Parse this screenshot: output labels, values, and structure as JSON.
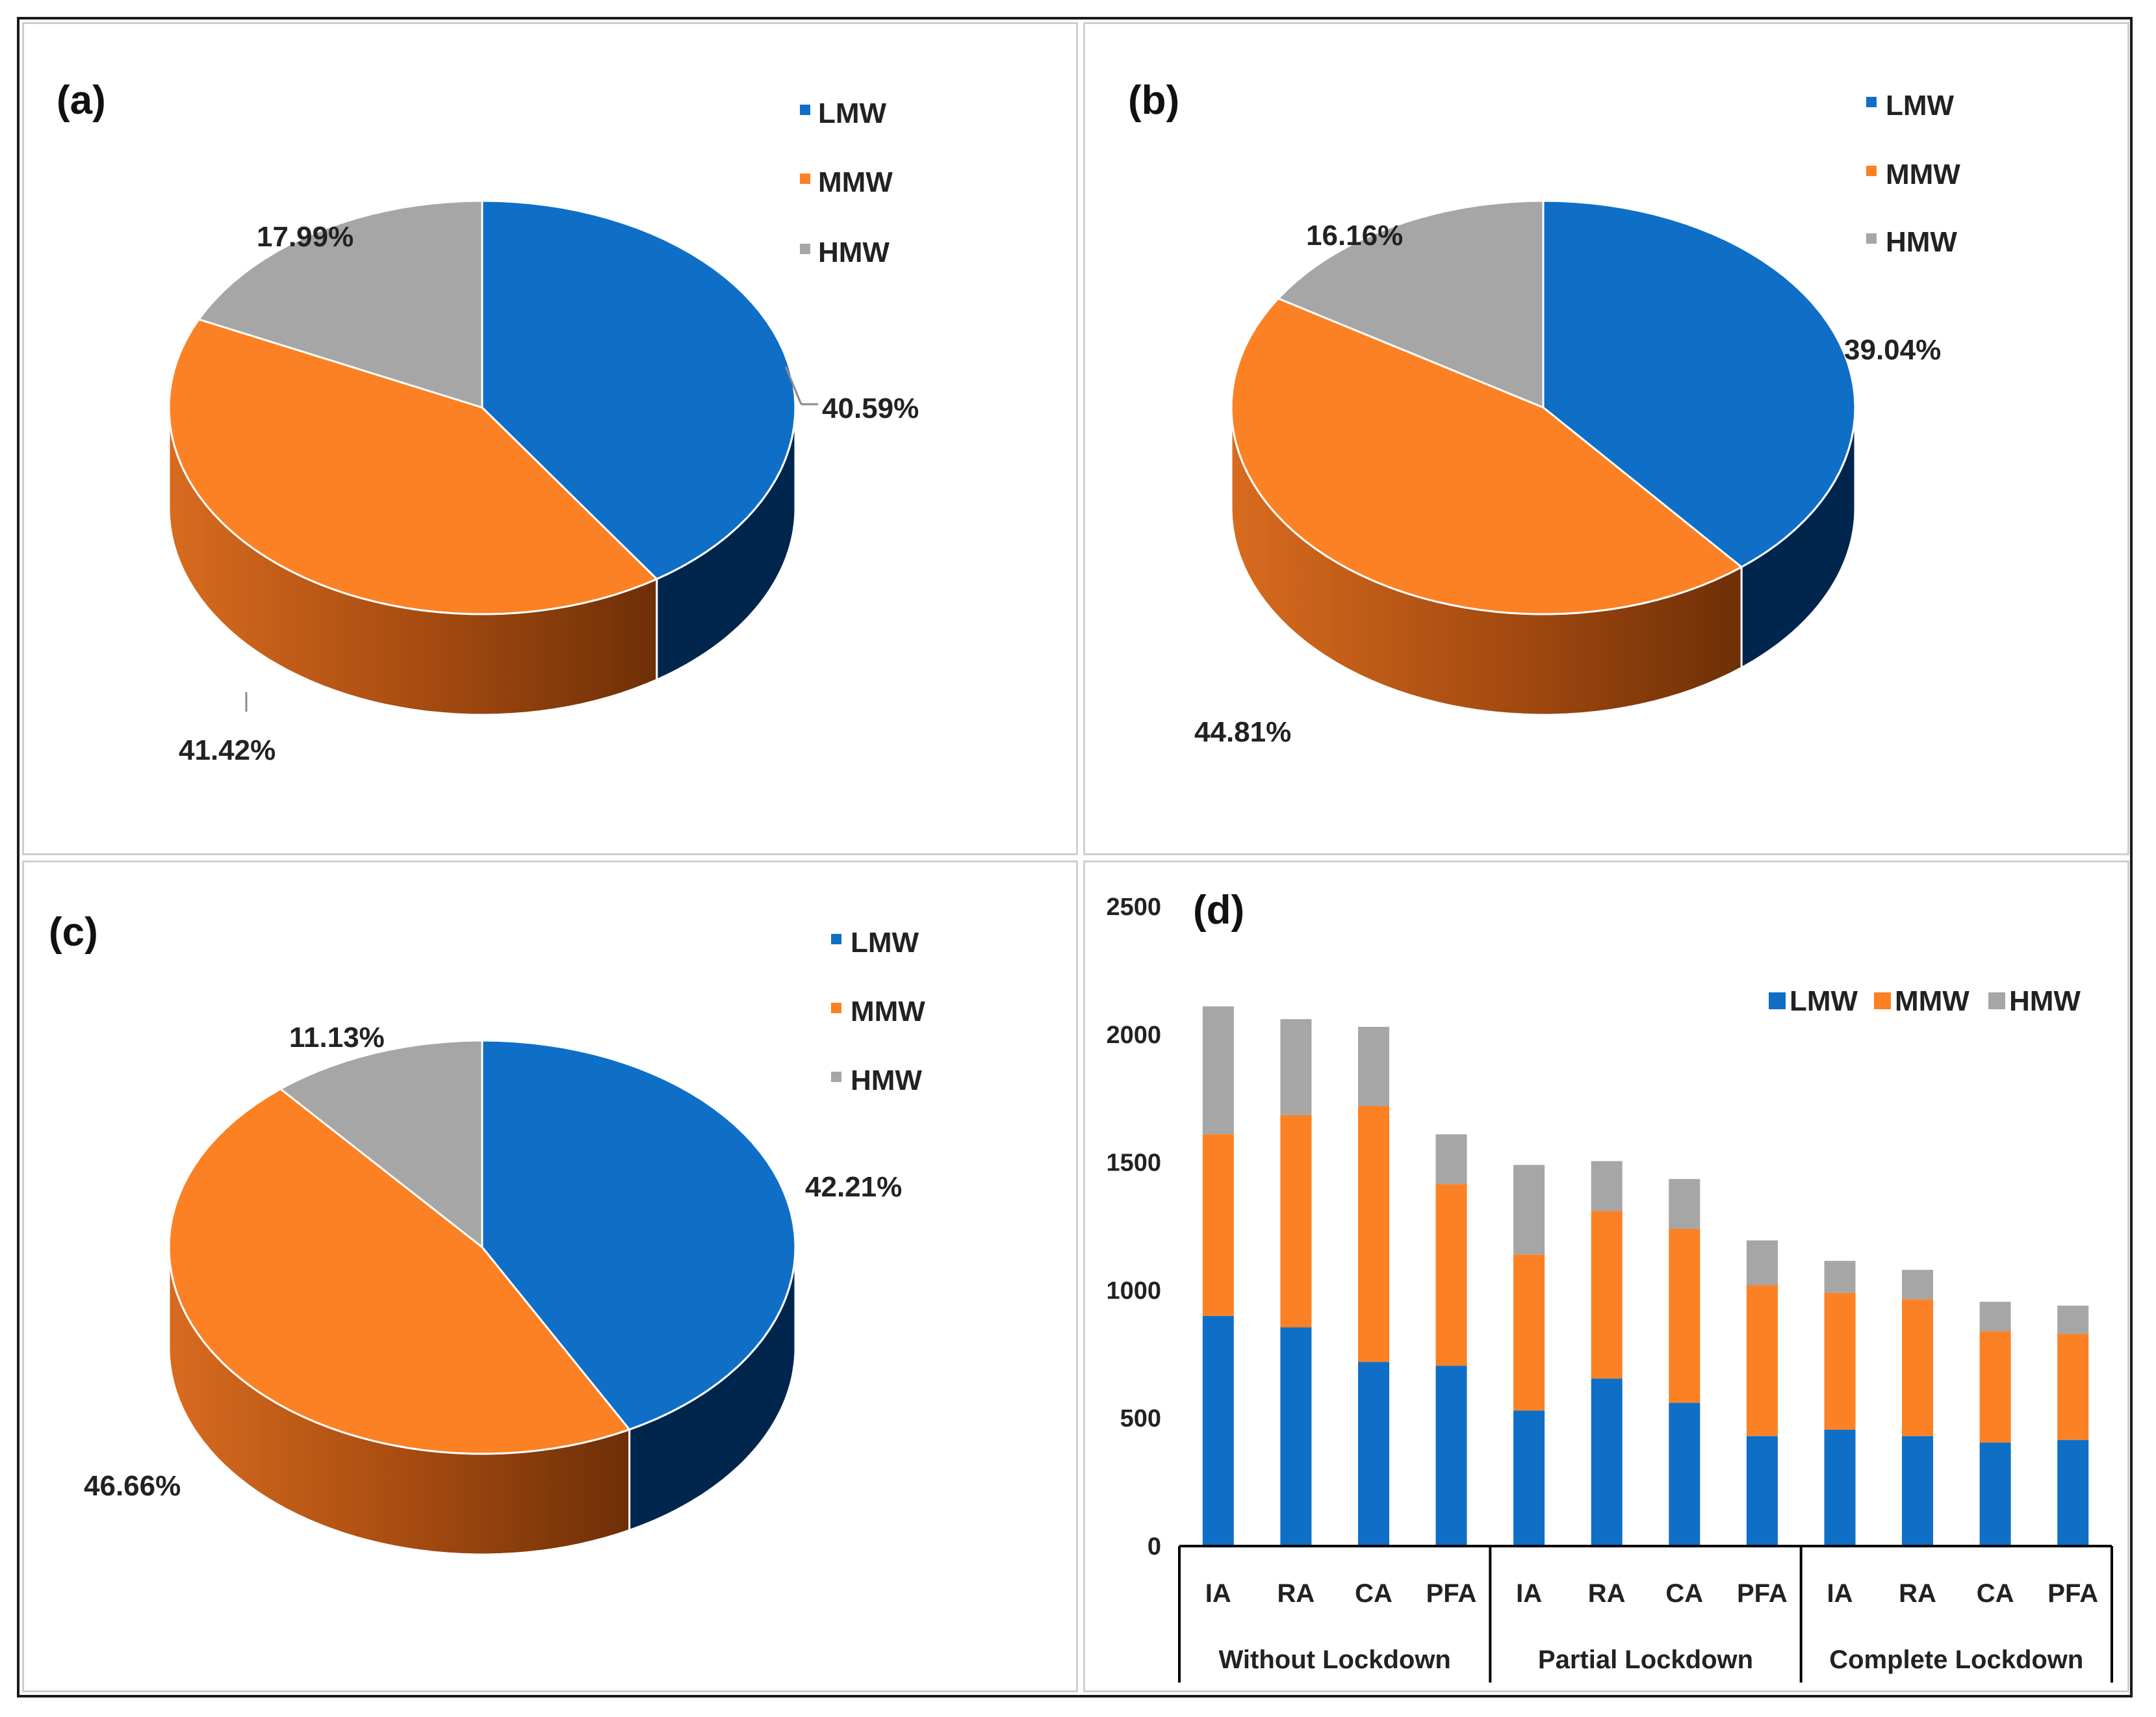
{
  "colors": {
    "LMW": "#0f6fc6",
    "MMW": "#fb8124",
    "HMW": "#a6a6a6",
    "LMW_side": "#00264d",
    "MMW_side_light": "#d86b1f",
    "MMW_side_dark": "#6e2f07",
    "HMW_side": "#7a7a7a",
    "axis": "#000000"
  },
  "chart_data": [
    {
      "type": "pie",
      "panel_label": "(a)",
      "legend": [
        "LMW",
        "MMW",
        "HMW"
      ],
      "slices": [
        {
          "name": "LMW",
          "value": 40.59,
          "label": "40.59%"
        },
        {
          "name": "MMW",
          "value": 41.42,
          "label": "41.42%"
        },
        {
          "name": "HMW",
          "value": 17.99,
          "label": "17.99%"
        }
      ]
    },
    {
      "type": "pie",
      "panel_label": "(b)",
      "legend": [
        "LMW",
        "MMW",
        "HMW"
      ],
      "slices": [
        {
          "name": "LMW",
          "value": 39.04,
          "label": "39.04%"
        },
        {
          "name": "MMW",
          "value": 44.81,
          "label": "44.81%"
        },
        {
          "name": "HMW",
          "value": 16.16,
          "label": "16.16%"
        }
      ]
    },
    {
      "type": "pie",
      "panel_label": "(c)",
      "legend": [
        "LMW",
        "MMW",
        "HMW"
      ],
      "slices": [
        {
          "name": "LMW",
          "value": 42.21,
          "label": "42.21%"
        },
        {
          "name": "MMW",
          "value": 46.66,
          "label": "46.66%"
        },
        {
          "name": "HMW",
          "value": 11.13,
          "label": "11.13%"
        }
      ]
    },
    {
      "type": "bar",
      "stacked": true,
      "panel_label": "(d)",
      "legend": [
        "LMW",
        "MMW",
        "HMW"
      ],
      "ylim": [
        0,
        2500
      ],
      "yticks": [
        0,
        500,
        1000,
        1500,
        2000,
        2500
      ],
      "categories": [
        "IA",
        "RA",
        "CA",
        "PFA",
        "IA",
        "RA",
        "CA",
        "PFA",
        "IA",
        "RA",
        "CA",
        "PFA"
      ],
      "groups": [
        {
          "label": "Without Lockdown",
          "size": 4
        },
        {
          "label": "Partial Lockdown",
          "size": 4
        },
        {
          "label": "Complete Lockdown",
          "size": 4
        }
      ],
      "series": [
        {
          "name": "LMW",
          "values": [
            900,
            855,
            720,
            705,
            530,
            655,
            560,
            430,
            455,
            430,
            405,
            415
          ]
        },
        {
          "name": "MMW",
          "values": [
            710,
            830,
            1000,
            710,
            610,
            655,
            680,
            590,
            535,
            535,
            435,
            415
          ]
        },
        {
          "name": "HMW",
          "values": [
            500,
            375,
            310,
            195,
            350,
            195,
            195,
            175,
            125,
            115,
            115,
            110
          ]
        }
      ]
    }
  ]
}
